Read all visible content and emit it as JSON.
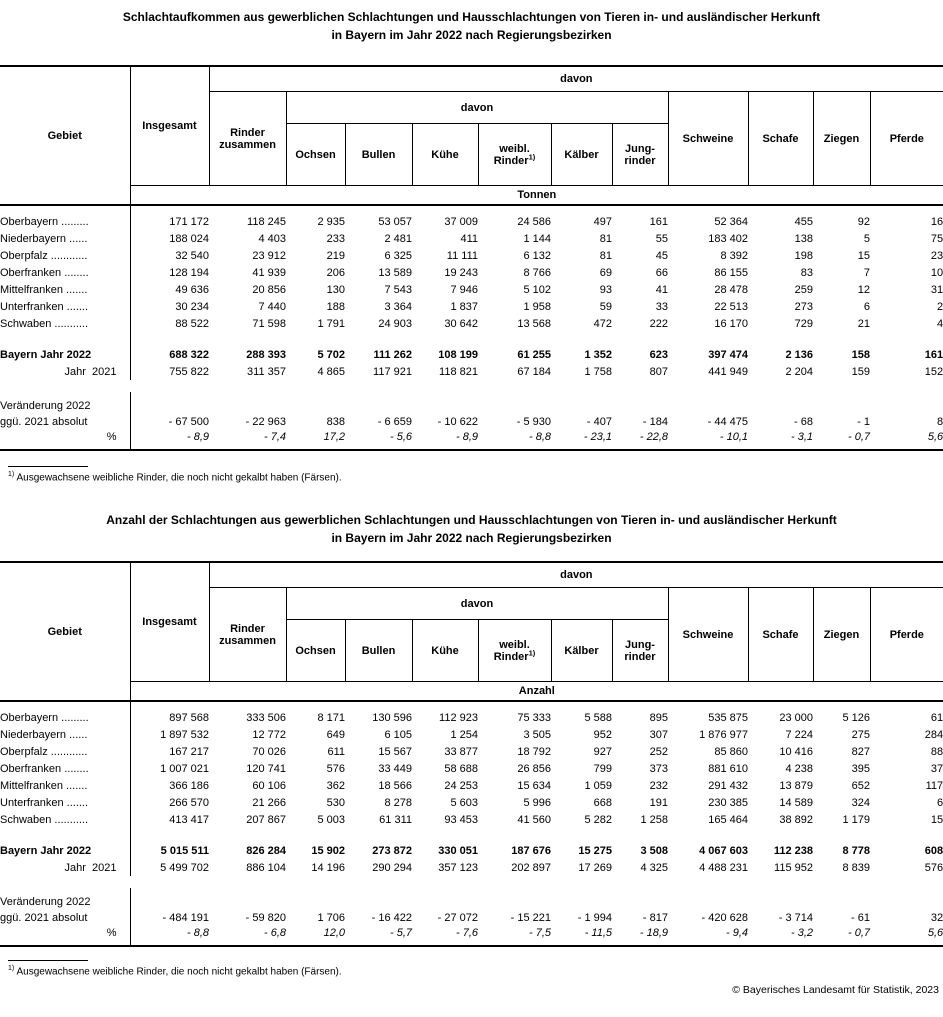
{
  "titles": {
    "table1_line1": "Schlachtaufkommen aus gewerblichen Schlachtungen und Hausschlachtungen von Tieren in- und ausländischer Herkunft",
    "table1_line2": "in Bayern im Jahr 2022 nach Regierungsbezirken",
    "table2_line1": "Anzahl der Schlachtungen aus gewerblichen Schlachtungen und Hausschlachtungen von Tieren in- und ausländischer Herkunft",
    "table2_line2": "in Bayern im Jahr 2022 nach Regierungsbezirken"
  },
  "columns": {
    "gebiet": "Gebiet",
    "insgesamt": "Insgesamt",
    "davon": "davon",
    "rinder_zusammen": "Rinder\nzusammen",
    "ochsen": "Ochsen",
    "bullen": "Bullen",
    "kuehe": "Kühe",
    "weibl_line1": "weibl.",
    "weibl_line2": "Rinder",
    "footnote_marker": "1)",
    "kaelber": "Kälber",
    "jungrinder": "Jung-\nrinder",
    "schweine": "Schweine",
    "schafe": "Schafe",
    "ziegen": "Ziegen",
    "pferde": "Pferde"
  },
  "tables": [
    {
      "unit": "Tonnen",
      "rows": [
        {
          "type": "tspacer",
          "label": "",
          "values": []
        },
        {
          "type": "region",
          "label": "Oberbayern .........",
          "values": [
            "171 172",
            "118 245",
            "2 935",
            "53 057",
            "37 009",
            "24 586",
            "497",
            "161",
            "52 364",
            "455",
            "92",
            "16"
          ]
        },
        {
          "type": "region",
          "label": "Niederbayern ......",
          "values": [
            "188 024",
            "4 403",
            "233",
            "2 481",
            "411",
            "1 144",
            "81",
            "55",
            "183 402",
            "138",
            "5",
            "75"
          ]
        },
        {
          "type": "region",
          "label": "Oberpfalz ............",
          "values": [
            "32 540",
            "23 912",
            "219",
            "6 325",
            "11 111",
            "6 132",
            "81",
            "45",
            "8 392",
            "198",
            "15",
            "23"
          ]
        },
        {
          "type": "region",
          "label": "Oberfranken ........",
          "values": [
            "128 194",
            "41 939",
            "206",
            "13 589",
            "19 243",
            "8 766",
            "69",
            "66",
            "86 155",
            "83",
            "7",
            "10"
          ]
        },
        {
          "type": "region",
          "label": "Mittelfranken .......",
          "values": [
            "49 636",
            "20 856",
            "130",
            "7 543",
            "7 946",
            "5 102",
            "93",
            "41",
            "28 478",
            "259",
            "12",
            "31"
          ]
        },
        {
          "type": "region",
          "label": "Unterfranken .......",
          "values": [
            "30 234",
            "7 440",
            "188",
            "3 364",
            "1 837",
            "1 958",
            "59",
            "33",
            "22 513",
            "273",
            "6",
            "2"
          ]
        },
        {
          "type": "region",
          "label": "Schwaben ...........",
          "values": [
            "88 522",
            "71 598",
            "1 791",
            "24 903",
            "30 642",
            "13 568",
            "472",
            "222",
            "16 170",
            "729",
            "21",
            "4"
          ]
        },
        {
          "type": "spacer",
          "label": "",
          "values": []
        },
        {
          "type": "total",
          "label": "Bayern Jahr 2022",
          "values": [
            "688 322",
            "288 393",
            "5 702",
            "111 262",
            "108 199",
            "61 255",
            "1 352",
            "623",
            "397 474",
            "2 136",
            "158",
            "161"
          ]
        },
        {
          "type": "prev",
          "label": "Jahr  2021",
          "values": [
            "755 822",
            "311 357",
            "4 865",
            "117 921",
            "118 821",
            "67 184",
            "1 758",
            "807",
            "441 949",
            "2 204",
            "159",
            "152"
          ]
        },
        {
          "type": "gap",
          "label": "",
          "values": []
        },
        {
          "type": "change",
          "label": "Veränderung 2022",
          "values": []
        },
        {
          "type": "abs",
          "label": "ggü. 2021 absolut",
          "values": [
            "- 67 500",
            "- 22 963",
            "838",
            "- 6 659",
            "- 10 622",
            "- 5 930",
            "- 407",
            "- 184",
            "- 44 475",
            "- 68",
            "- 1",
            "8"
          ]
        },
        {
          "type": "pct",
          "label": "%",
          "values": [
            "- 8,9",
            "- 7,4",
            "17,2",
            "- 5,6",
            "- 8,9",
            "- 8,8",
            "- 23,1",
            "- 22,8",
            "- 10,1",
            "- 3,1",
            "- 0,7",
            "5,6"
          ]
        }
      ]
    },
    {
      "unit": "Anzahl",
      "rows": [
        {
          "type": "tspacer",
          "label": "",
          "values": []
        },
        {
          "type": "region",
          "label": "Oberbayern .........",
          "values": [
            "897 568",
            "333 506",
            "8 171",
            "130 596",
            "112 923",
            "75 333",
            "5 588",
            "895",
            "535 875",
            "23 000",
            "5 126",
            "61"
          ]
        },
        {
          "type": "region",
          "label": "Niederbayern ......",
          "values": [
            "1 897 532",
            "12 772",
            "649",
            "6 105",
            "1 254",
            "3 505",
            "952",
            "307",
            "1 876 977",
            "7 224",
            "275",
            "284"
          ]
        },
        {
          "type": "region",
          "label": "Oberpfalz ............",
          "values": [
            "167 217",
            "70 026",
            "611",
            "15 567",
            "33 877",
            "18 792",
            "927",
            "252",
            "85 860",
            "10 416",
            "827",
            "88"
          ]
        },
        {
          "type": "region",
          "label": "Oberfranken ........",
          "values": [
            "1 007 021",
            "120 741",
            "576",
            "33 449",
            "58 688",
            "26 856",
            "799",
            "373",
            "881 610",
            "4 238",
            "395",
            "37"
          ]
        },
        {
          "type": "region",
          "label": "Mittelfranken .......",
          "values": [
            "366 186",
            "60 106",
            "362",
            "18 566",
            "24 253",
            "15 634",
            "1 059",
            "232",
            "291 432",
            "13 879",
            "652",
            "117"
          ]
        },
        {
          "type": "region",
          "label": "Unterfranken .......",
          "values": [
            "266 570",
            "21 266",
            "530",
            "8 278",
            "5 603",
            "5 996",
            "668",
            "191",
            "230 385",
            "14 589",
            "324",
            "6"
          ]
        },
        {
          "type": "region",
          "label": "Schwaben ...........",
          "values": [
            "413 417",
            "207 867",
            "5 003",
            "61 311",
            "93 453",
            "41 560",
            "5 282",
            "1 258",
            "165 464",
            "38 892",
            "1 179",
            "15"
          ]
        },
        {
          "type": "spacer",
          "label": "",
          "values": []
        },
        {
          "type": "total",
          "label": "Bayern Jahr 2022",
          "values": [
            "5 015 511",
            "826 284",
            "15 902",
            "273 872",
            "330 051",
            "187 676",
            "15 275",
            "3 508",
            "4 067 603",
            "112 238",
            "8 778",
            "608"
          ]
        },
        {
          "type": "prev",
          "label": "Jahr  2021",
          "values": [
            "5 499 702",
            "886 104",
            "14 196",
            "290 294",
            "357 123",
            "202 897",
            "17 269",
            "4 325",
            "4 488 231",
            "115 952",
            "8 839",
            "576"
          ]
        },
        {
          "type": "gap",
          "label": "",
          "values": []
        },
        {
          "type": "change",
          "label": "Veränderung 2022",
          "values": []
        },
        {
          "type": "abs",
          "label": "ggü. 2021 absolut",
          "values": [
            "- 484 191",
            "- 59 820",
            "1 706",
            "- 16 422",
            "- 27 072",
            "- 15 221",
            "- 1 994",
            "- 817",
            "- 420 628",
            "- 3 714",
            "- 61",
            "32"
          ]
        },
        {
          "type": "pct",
          "label": "%",
          "values": [
            "- 8,8",
            "- 6,8",
            "12,0",
            "- 5,7",
            "- 7,6",
            "- 7,5",
            "- 11,5",
            "- 18,9",
            "- 9,4",
            "- 3,2",
            "- 0,7",
            "5,6"
          ]
        }
      ]
    }
  ],
  "footnote_marker": "1)",
  "footnote_text": "Ausgewachsene weibliche Rinder, die noch nicht gekalbt haben (Färsen).",
  "copyright": "© Bayerisches Landesamt für Statistik, 2023"
}
